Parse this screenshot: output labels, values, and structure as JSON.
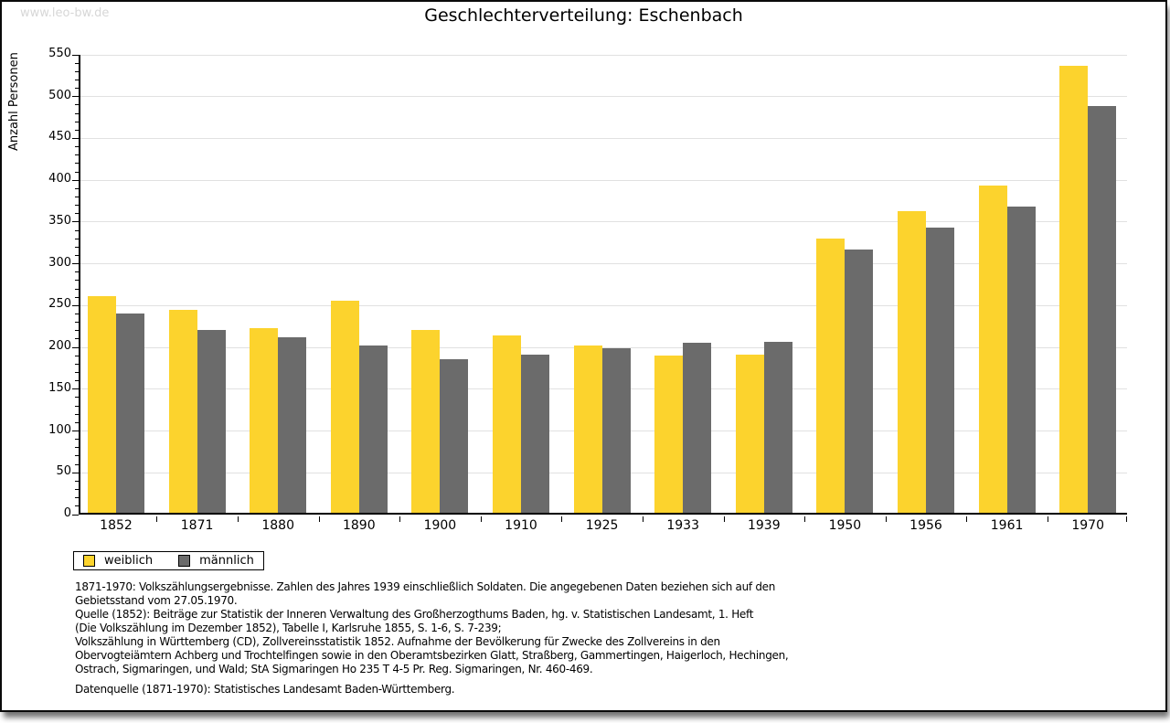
{
  "watermark": "www.leo-bw.de",
  "title": "Geschlechterverteilung: Eschenbach",
  "chart_data": {
    "type": "bar",
    "title": "Geschlechterverteilung: Eschenbach",
    "xlabel": "",
    "ylabel": "Anzahl Personen",
    "ylim": [
      0,
      550
    ],
    "yticks": [
      0,
      50,
      100,
      150,
      200,
      250,
      300,
      350,
      400,
      450,
      500,
      550
    ],
    "minor_tick_step": 10,
    "grid": "horizontal-majors",
    "legend_position": "bottom-left",
    "categories": [
      "1852",
      "1871",
      "1880",
      "1890",
      "1900",
      "1910",
      "1925",
      "1933",
      "1939",
      "1950",
      "1956",
      "1961",
      "1970"
    ],
    "series": [
      {
        "name": "weiblich",
        "color": "#FCD32D",
        "values": [
          259,
          243,
          221,
          254,
          219,
          212,
          200,
          188,
          189,
          328,
          361,
          391,
          535
        ]
      },
      {
        "name": "männlich",
        "color": "#6B6B6B",
        "values": [
          238,
          219,
          210,
          200,
          184,
          189,
          197,
          203,
          204,
          315,
          341,
          366,
          487
        ]
      }
    ]
  },
  "colors": {
    "weiblich": "#FCD32D",
    "maennlich": "#6B6B6B",
    "gridline": "#E1E1E1",
    "axis": "#000000",
    "watermark": "#D7D7D7"
  },
  "legend": {
    "weiblich_label": "weiblich",
    "maennlich_label": "männlich"
  },
  "footnote_lines": [
    "1871-1970: Volkszählungsergebnisse. Zahlen des Jahres 1939 einschließlich Soldaten. Die angegebenen Daten beziehen sich auf den",
    "Gebietsstand vom 27.05.1970.",
    "Quelle (1852): Beiträge zur Statistik der Inneren Verwaltung des Großherzogthums Baden, hg. v. Statistischen Landesamt, 1. Heft",
    "(Die Volkszählung im Dezember 1852), Tabelle I, Karlsruhe 1855, S. 1-6, S. 7-239;",
    "Volkszählung in Württemberg (CD), Zollvereinsstatistik 1852. Aufnahme der Bevölkerung für Zwecke des Zollvereins in den",
    "Obervogteiämtern Achberg und Trochtelfingen sowie in den Oberamtsbezirken Glatt, Straßberg, Gammertingen, Haigerloch, Hechingen,",
    "Ostrach, Sigmaringen, und Wald; StA Sigmaringen Ho 235 T 4-5 Pr. Reg. Sigmaringen, Nr. 460-469."
  ],
  "datasource_line": "Datenquelle (1871-1970): Statistisches Landesamt Baden-Württemberg."
}
